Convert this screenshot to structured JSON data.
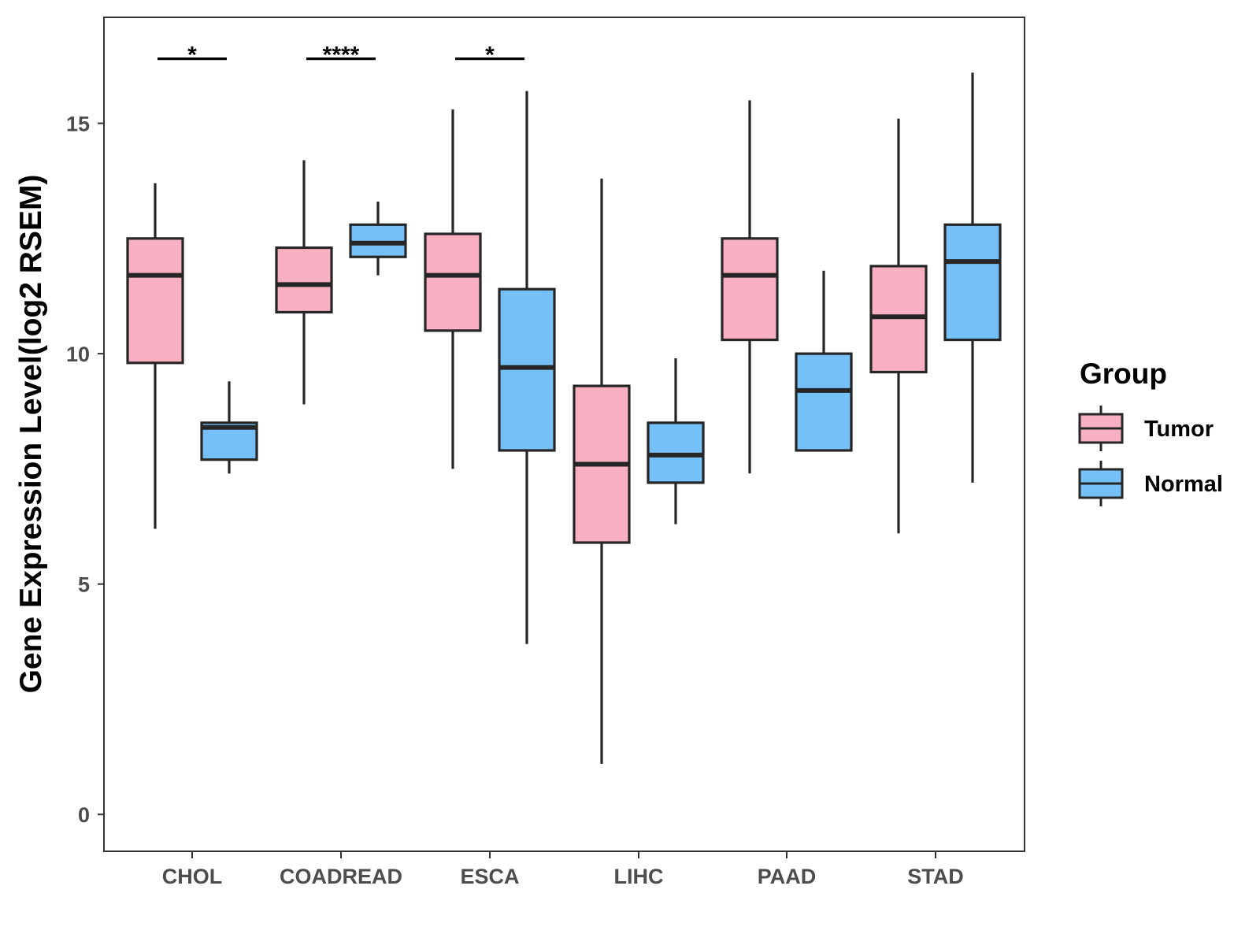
{
  "chart_data": {
    "type": "boxplot",
    "title": "",
    "xlabel": "",
    "ylabel": "Gene Expression Level(log2 RSEM)",
    "ylim": [
      -0.8,
      17.3
    ],
    "yticks": [
      0,
      5,
      10,
      15
    ],
    "grid": false,
    "legend": {
      "title": "Group",
      "position": "right"
    },
    "categories": [
      "CHOL",
      "COADREAD",
      "ESCA",
      "LIHC",
      "PAAD",
      "STAD"
    ],
    "series": [
      {
        "name": "Tumor",
        "color": "#F9B0C3",
        "boxes": [
          {
            "min": 6.2,
            "q1": 9.8,
            "median": 11.7,
            "q3": 12.5,
            "max": 13.7
          },
          {
            "min": 8.9,
            "q1": 10.9,
            "median": 11.5,
            "q3": 12.3,
            "max": 14.2
          },
          {
            "min": 7.5,
            "q1": 10.5,
            "median": 11.7,
            "q3": 12.6,
            "max": 15.3
          },
          {
            "min": 1.1,
            "q1": 5.9,
            "median": 7.6,
            "q3": 9.3,
            "max": 13.8
          },
          {
            "min": 7.4,
            "q1": 10.3,
            "median": 11.7,
            "q3": 12.5,
            "max": 15.5
          },
          {
            "min": 6.1,
            "q1": 9.6,
            "median": 10.8,
            "q3": 11.9,
            "max": 15.1
          }
        ]
      },
      {
        "name": "Normal",
        "color": "#75C1F7",
        "boxes": [
          {
            "min": 7.4,
            "q1": 7.7,
            "median": 8.4,
            "q3": 8.5,
            "max": 9.4
          },
          {
            "min": 11.7,
            "q1": 12.1,
            "median": 12.4,
            "q3": 12.8,
            "max": 13.3
          },
          {
            "min": 3.7,
            "q1": 7.9,
            "median": 9.7,
            "q3": 11.4,
            "max": 15.7
          },
          {
            "min": 6.3,
            "q1": 7.2,
            "median": 7.8,
            "q3": 8.5,
            "max": 9.9
          },
          {
            "min": null,
            "q1": 7.9,
            "median": 9.2,
            "q3": 10.0,
            "max": 11.8
          },
          {
            "min": 7.2,
            "q1": 10.3,
            "median": 12.0,
            "q3": 12.8,
            "max": 16.1
          }
        ]
      }
    ],
    "significance": [
      {
        "category": "CHOL",
        "label": "*",
        "y": 16.4
      },
      {
        "category": "COADREAD",
        "label": "****",
        "y": 16.4
      },
      {
        "category": "ESCA",
        "label": "*",
        "y": 16.4
      }
    ]
  }
}
